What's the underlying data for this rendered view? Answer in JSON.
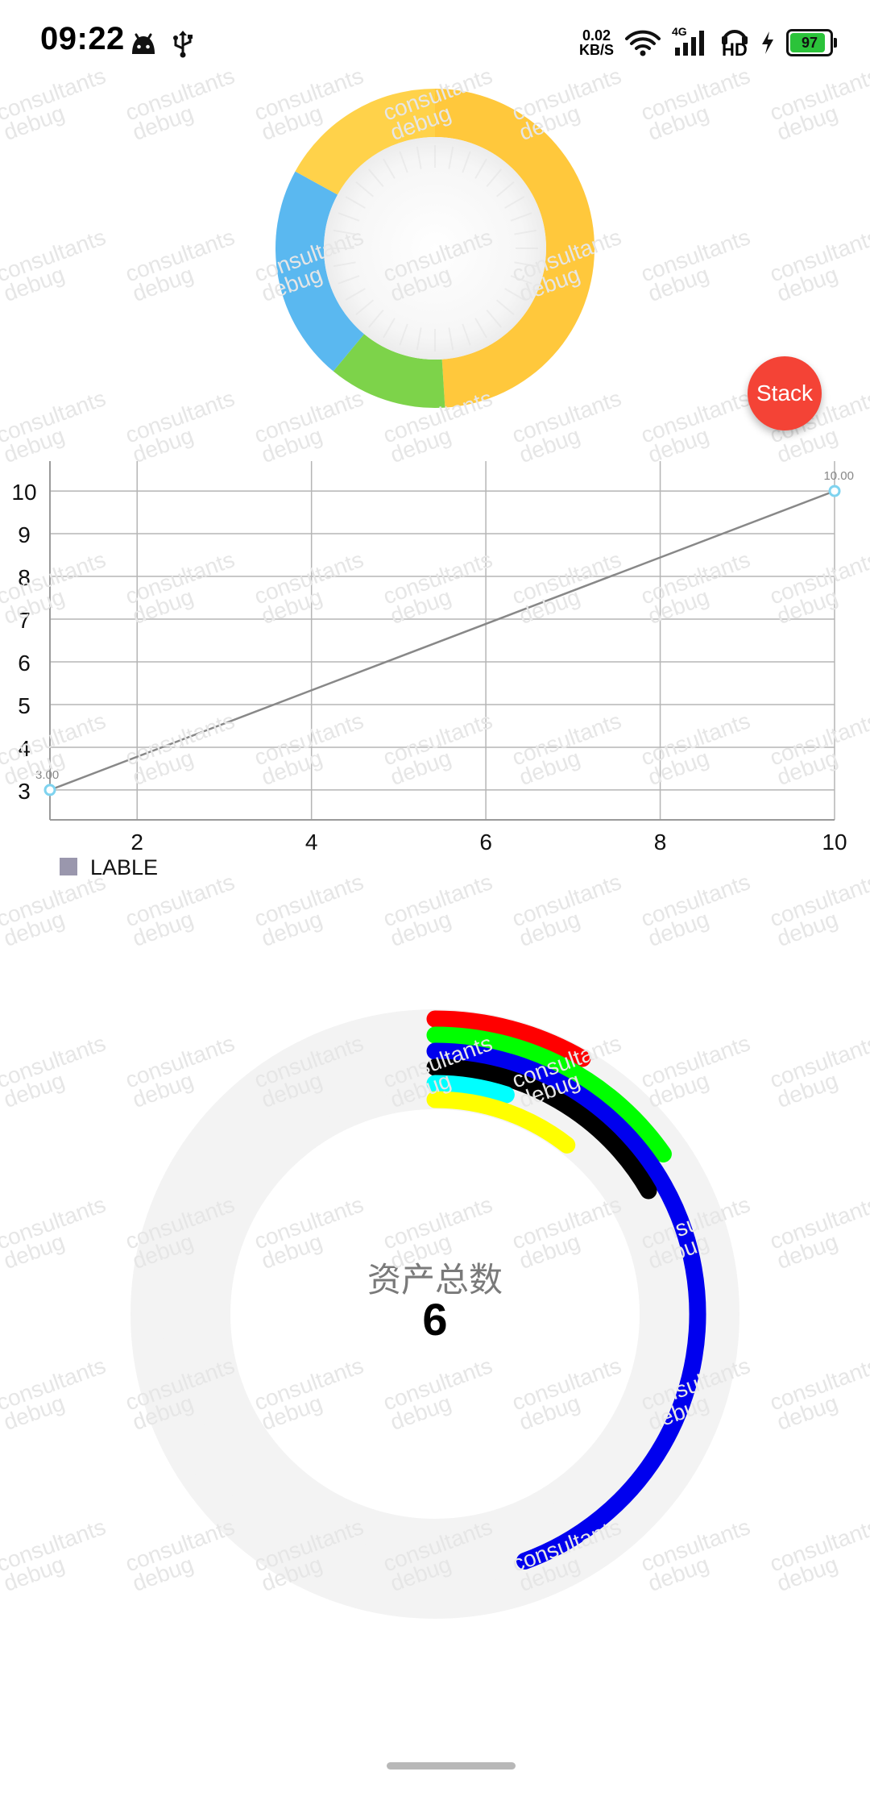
{
  "status_bar": {
    "time": "09:22",
    "net_speed_value": "0.02",
    "net_speed_unit": "KB/S",
    "signal_label": "4G",
    "hd_label": "HD",
    "battery": "97",
    "battery_color": "#2bc33a"
  },
  "fab": {
    "label": "Stack",
    "color": "#f44336"
  },
  "watermark": {
    "line1": "consultants",
    "line2": "debug"
  },
  "chart_data": [
    {
      "type": "pie",
      "donut": true,
      "slices": [
        {
          "value": 49,
          "color": "#ffc83c"
        },
        {
          "value": 12,
          "color": "#7dd34a"
        },
        {
          "value": 22,
          "color": "#5ab8f0"
        },
        {
          "value": 17,
          "color": "#ffd24a"
        }
      ]
    },
    {
      "type": "line",
      "x": [
        1,
        10
      ],
      "y": [
        3,
        10
      ],
      "point_labels": [
        "3.00",
        "10.00"
      ],
      "x_ticks": [
        "2",
        "4",
        "6",
        "8",
        "10"
      ],
      "y_ticks": [
        "3",
        "4",
        "5",
        "6",
        "7",
        "8",
        "9",
        "10"
      ],
      "xlim": [
        1,
        10
      ],
      "ylim": [
        2.3,
        10.7
      ],
      "grid": true,
      "legend": {
        "label": "LABLE",
        "color": "#9a97ad",
        "placement": "bottom-left"
      },
      "line_color": "#888888",
      "point_color": "#7fd3ef"
    },
    {
      "type": "radial-bar",
      "center_label": "资产总数",
      "center_value": "6",
      "max_degrees": 360,
      "rings": [
        {
          "degrees": 30,
          "color": "#ff0000"
        },
        {
          "degrees": 55,
          "color": "#00ff00"
        },
        {
          "degrees": 160,
          "color": "#0000ee"
        },
        {
          "degrees": 60,
          "color": "#000000"
        },
        {
          "degrees": 18,
          "color": "#00ffff"
        },
        {
          "degrees": 38,
          "color": "#ffff00"
        }
      ]
    }
  ]
}
